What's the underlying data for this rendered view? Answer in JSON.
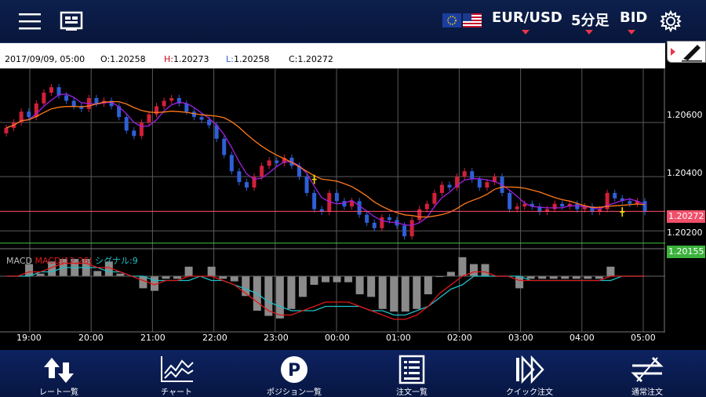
{
  "header": {
    "pair": "EUR/USD",
    "timeframe": "5分足",
    "price_side": "BID"
  },
  "info": {
    "datetime": "2017/09/09, 05:00",
    "open": "O:1.20258",
    "high_prefix": "H:",
    "high_value": "1.20273",
    "low_prefix": "L:",
    "low_value": "1.20258",
    "close": "C:1.20272"
  },
  "price_axis": [
    "1.20600",
    "1.20400",
    "1.20200"
  ],
  "price_tags": {
    "current": "1.20272",
    "line": "1.20155"
  },
  "time_axis": [
    "19:00",
    "20:00",
    "21:00",
    "22:00",
    "23:00",
    "00:00",
    "01:00",
    "02:00",
    "03:00",
    "04:00",
    "05:00"
  ],
  "macd_legend": {
    "macd": "MACD",
    "params": "MACD(12,26)",
    "signal": "シグナル:9"
  },
  "colors": {
    "up": "#d2203a",
    "down": "#2f5fd6",
    "ma_fast": "#a020e0",
    "ma_slow": "#ff7a1a",
    "macd": "#e01818",
    "signal": "#20c0c8",
    "hist": "#8a8a8a",
    "current_line": "#ff4d6d",
    "green_line": "#3cc83c"
  },
  "nav": [
    {
      "label": "レート一覧",
      "icon": "rate-list-icon"
    },
    {
      "label": "チャート",
      "icon": "chart-icon"
    },
    {
      "label": "ポジション一覧",
      "icon": "position-icon"
    },
    {
      "label": "注文一覧",
      "icon": "order-list-icon"
    },
    {
      "label": "クイック注文",
      "icon": "quick-order-icon"
    },
    {
      "label": "通常注文",
      "icon": "normal-order-icon"
    }
  ],
  "chart_data": {
    "type": "candlestick",
    "series": [
      {
        "name": "EUR/USD BID 5分足",
        "values": [
          1.2058,
          1.206,
          1.2064,
          1.2062,
          1.2067,
          1.2071,
          1.2073,
          1.207,
          1.2068,
          1.2066,
          1.2065,
          1.2069,
          1.2067,
          1.2068,
          1.2066,
          1.2062,
          1.2057,
          1.2055,
          1.206,
          1.2063,
          1.2066,
          1.2068,
          1.2069,
          1.2067,
          1.2064,
          1.2062,
          1.2061,
          1.2059,
          1.2054,
          1.2048,
          1.2042,
          1.2038,
          1.2036,
          1.204,
          1.2044,
          1.2046,
          1.2045,
          1.2047,
          1.2044,
          1.204,
          1.2034,
          1.2028,
          1.2027,
          1.2034,
          1.2031,
          1.2029,
          1.2031,
          1.2026,
          1.2023,
          1.2021,
          1.2025,
          1.2024,
          1.2022,
          1.2018,
          1.2024,
          1.2028,
          1.203,
          1.2034,
          1.2037,
          1.2036,
          1.204,
          1.2042,
          1.2039,
          1.2036,
          1.2038,
          1.204,
          1.2034,
          1.2028,
          1.2029,
          1.203,
          1.2029,
          1.2027,
          1.2028,
          1.203,
          1.2029,
          1.203,
          1.2028,
          1.2029,
          1.2027,
          1.2028,
          1.2034,
          1.2032,
          1.2031,
          1.203,
          1.2031,
          1.2027
        ]
      },
      {
        "name": "MACD",
        "values": [
          0,
          0,
          1,
          1,
          2,
          3,
          3,
          3,
          2,
          2,
          1,
          0,
          -1,
          -2,
          -1,
          -1,
          0,
          0,
          0,
          -1,
          -2,
          -4,
          -6,
          -8,
          -9,
          -9,
          -8,
          -7,
          -6,
          -6,
          -6,
          -7,
          -8,
          -9,
          -10,
          -10,
          -9,
          -7,
          -4,
          -2,
          0,
          1,
          1,
          0,
          0,
          -1,
          -1,
          -1,
          -1,
          -1,
          -1,
          -1,
          -1,
          0,
          0,
          0,
          0
        ]
      },
      {
        "name": "シグナル:9",
        "values": [
          0,
          0,
          0,
          1,
          1,
          2,
          2,
          2,
          2,
          1,
          1,
          0,
          0,
          -1,
          -1,
          -1,
          -1,
          0,
          -1,
          -1,
          -2,
          -3,
          -4,
          -6,
          -7,
          -8,
          -8,
          -8,
          -7,
          -7,
          -7,
          -7,
          -8,
          -8,
          -9,
          -9,
          -8,
          -7,
          -5,
          -3,
          -2,
          0,
          0,
          0,
          0,
          0,
          -1,
          -1,
          -1,
          -1,
          -1,
          -1,
          -1,
          -1,
          0,
          0,
          0
        ]
      }
    ],
    "x_ticks": [
      "19:00",
      "20:00",
      "21:00",
      "22:00",
      "23:00",
      "00:00",
      "01:00",
      "02:00",
      "03:00",
      "04:00",
      "05:00"
    ],
    "y_ticks": [
      "1.20600",
      "1.20400",
      "1.20200"
    ],
    "ylim": [
      1.2014,
      1.208
    ],
    "grid": true,
    "current_price": 1.20272,
    "reference_line": 1.20155
  }
}
